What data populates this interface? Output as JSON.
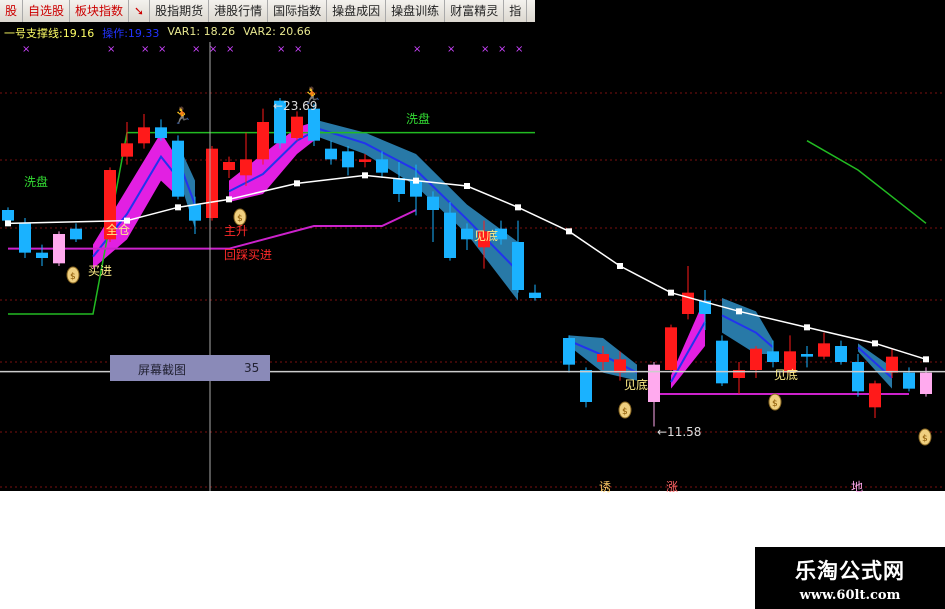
{
  "toolbar": {
    "items": [
      "股",
      "自选股",
      "板块指数",
      "股指期货",
      "港股行情",
      "国际指数",
      "操盘成因",
      "操盘训练",
      "财富精灵",
      "指"
    ]
  },
  "legend": {
    "support_label": "一号支撑线:19.16",
    "op_label": "操作:19.33",
    "var1": "VAR1: 18.26",
    "var2": "VAR2: 20.66"
  },
  "tooltip": {
    "label": "屏幕截图",
    "value": "35"
  },
  "annotations": {
    "buy_in": "买进",
    "full_position": "全仓",
    "main_rise": "主升",
    "pullback_buy": "回踩买进",
    "wash_1": "洗盘",
    "wash_2": "洗盘",
    "bottom_1": "见底",
    "bottom_2": "见底",
    "bottom_3": "见底",
    "high_marker": "←23.69",
    "low_marker": "←11.58",
    "bottom_a": "诱",
    "bottom_b": "涨",
    "bottom_c": "地"
  },
  "watermark": {
    "line1": "乐淘公式网",
    "line2": "www.60lt.com"
  },
  "colors": {
    "up": "#ff1a1a",
    "down": "#1ab2ff",
    "special": "#ffaaee",
    "ma": "#ffffff",
    "wash_line": "#22bb22",
    "support_line": "#cc22cc",
    "band_up": "#ee22ee",
    "band_down": "#2a7fb0"
  },
  "chart_data": {
    "type": "candlestick",
    "ylim": [
      9.2,
      26.0
    ],
    "high": 23.69,
    "low": 11.58,
    "crosshair_price": 13.64,
    "candles": [
      [
        19.7,
        19.3,
        19.8,
        19.1
      ],
      [
        19.2,
        18.1,
        19.4,
        17.9
      ],
      [
        18.1,
        17.9,
        18.4,
        17.6
      ],
      [
        17.7,
        18.8,
        18.9,
        17.6,
        "p"
      ],
      [
        19.0,
        18.6,
        19.2,
        18.5
      ],
      null,
      [
        18.6,
        21.2,
        21.3,
        18.5
      ],
      [
        21.7,
        22.2,
        23.0,
        21.4
      ],
      [
        22.2,
        22.8,
        23.3,
        22.0
      ],
      [
        22.8,
        22.4,
        23.1,
        22.3
      ],
      [
        22.3,
        20.2,
        22.5,
        20.1
      ],
      [
        19.9,
        19.3,
        20.2,
        18.8
      ],
      [
        19.4,
        22.0,
        22.1,
        19.3
      ],
      [
        21.2,
        21.5,
        21.7,
        20.9
      ],
      [
        21.0,
        21.6,
        22.6,
        20.6
      ],
      [
        21.6,
        23.0,
        23.5,
        21.4
      ],
      [
        23.8,
        22.2,
        23.9,
        22.0
      ],
      [
        22.4,
        23.2,
        23.4,
        22.3
      ],
      [
        23.5,
        22.3,
        23.69,
        22.1
      ],
      [
        22.0,
        21.6,
        22.3,
        21.4
      ],
      [
        21.9,
        21.3,
        22.1,
        21.0
      ],
      [
        21.5,
        21.6,
        21.8,
        21.3
      ],
      [
        21.6,
        21.1,
        21.9,
        20.9
      ],
      [
        20.9,
        20.3,
        21.5,
        20.0
      ],
      [
        20.8,
        20.2,
        21.4,
        19.5
      ],
      [
        20.2,
        19.7,
        20.4,
        18.5
      ],
      [
        19.6,
        17.9,
        20.0,
        17.8
      ],
      [
        19.0,
        18.6,
        19.2,
        18.2
      ],
      [
        18.3,
        18.9,
        19.3,
        17.5
      ],
      [
        19.0,
        18.6,
        19.3,
        18.4
      ],
      [
        18.5,
        16.7,
        19.3,
        16.6
      ],
      [
        16.6,
        16.4,
        16.9,
        16.3
      ],
      null,
      [
        14.9,
        13.9,
        15.0,
        13.6
      ],
      [
        13.7,
        12.5,
        13.8,
        12.3
      ],
      [
        14.0,
        14.3,
        14.6,
        13.7
      ],
      [
        13.6,
        14.1,
        14.4,
        13.3
      ],
      null,
      [
        12.5,
        13.9,
        14.0,
        11.58,
        "p"
      ],
      [
        13.7,
        15.3,
        15.4,
        13.6
      ],
      [
        15.8,
        16.6,
        17.6,
        15.6
      ],
      [
        16.3,
        15.8,
        16.7,
        15.2
      ],
      [
        14.8,
        13.2,
        15.0,
        13.1
      ],
      [
        13.4,
        13.7,
        14.0,
        12.8
      ],
      [
        13.7,
        14.5,
        14.6,
        13.4
      ],
      [
        14.4,
        14.0,
        14.8,
        13.8
      ],
      [
        13.6,
        14.4,
        15.0,
        13.5
      ],
      [
        14.3,
        14.2,
        14.6,
        13.8
      ],
      [
        14.2,
        14.7,
        15.1,
        14.1
      ],
      [
        14.6,
        14.0,
        14.8,
        13.9
      ],
      [
        14.0,
        12.9,
        14.3,
        12.7
      ],
      [
        12.3,
        13.2,
        13.3,
        11.9
      ],
      [
        13.6,
        14.2,
        14.5,
        13.4
      ],
      [
        13.6,
        13.0,
        13.8,
        12.9
      ],
      [
        12.8,
        13.6,
        13.8,
        12.7,
        "p"
      ]
    ],
    "ma": [
      [
        0,
        19.2
      ],
      [
        7,
        19.3
      ],
      [
        10,
        19.8
      ],
      [
        13,
        20.1
      ],
      [
        17,
        20.7
      ],
      [
        21,
        21.0
      ],
      [
        24,
        20.8
      ],
      [
        27,
        20.6
      ],
      [
        30,
        19.8
      ],
      [
        33,
        18.9
      ],
      [
        36,
        17.6
      ],
      [
        39,
        16.6
      ],
      [
        43,
        15.9
      ],
      [
        47,
        15.3
      ],
      [
        51,
        14.7
      ],
      [
        54,
        14.1
      ]
    ],
    "wash_line": [
      [
        0,
        15.8
      ],
      [
        5,
        15.8
      ],
      [
        7,
        22.6
      ],
      [
        31,
        22.6
      ]
    ],
    "wash_line_2": [
      [
        47,
        22.3
      ],
      [
        50,
        21.2
      ],
      [
        54,
        19.2
      ]
    ],
    "support_line": [
      [
        0,
        18.25
      ],
      [
        13,
        18.25
      ],
      [
        18,
        19.1
      ],
      [
        22,
        19.1
      ],
      [
        24,
        19.7
      ]
    ],
    "support_line_2": [
      [
        38,
        12.8
      ],
      [
        53,
        12.8
      ]
    ],
    "bands": [
      {
        "kind": "up",
        "pts": [
          [
            5,
            18.4,
            17.5
          ],
          [
            7,
            20.5,
            18.6
          ],
          [
            9,
            22.6,
            20.8
          ],
          [
            10,
            21.6,
            20.2
          ]
        ]
      },
      {
        "kind": "down",
        "pts": [
          [
            10,
            22.2,
            21.0
          ],
          [
            11,
            20.8,
            19.0
          ]
        ]
      },
      {
        "kind": "up",
        "pts": [
          [
            13,
            20.8,
            20.0
          ],
          [
            15,
            21.8,
            20.3
          ],
          [
            17,
            22.8,
            21.8
          ],
          [
            18,
            23.0,
            22.3
          ]
        ]
      },
      {
        "kind": "down",
        "pts": [
          [
            18,
            23.1,
            22.5
          ],
          [
            21,
            22.6,
            21.8
          ],
          [
            24,
            21.8,
            20.6
          ],
          [
            27,
            19.9,
            18.8
          ],
          [
            30,
            18.5,
            16.3
          ]
        ]
      },
      {
        "kind": "down",
        "pts": [
          [
            33,
            15.0,
            14.6
          ],
          [
            35,
            14.9,
            13.6
          ],
          [
            37,
            13.9,
            13.3
          ]
        ]
      },
      {
        "kind": "up",
        "pts": [
          [
            39,
            13.5,
            13.0
          ],
          [
            41,
            16.4,
            14.6
          ]
        ]
      },
      {
        "kind": "down",
        "pts": [
          [
            42,
            16.4,
            15.1
          ],
          [
            44,
            15.9,
            14.3
          ],
          [
            45,
            14.8,
            14.3
          ]
        ]
      },
      {
        "kind": "down",
        "pts": [
          [
            50,
            14.7,
            14.4
          ],
          [
            52,
            13.8,
            13.0
          ]
        ]
      }
    ],
    "top_markers": [
      0,
      5,
      7,
      8,
      10,
      11,
      12,
      15,
      16,
      23,
      25,
      27,
      28,
      29
    ]
  }
}
